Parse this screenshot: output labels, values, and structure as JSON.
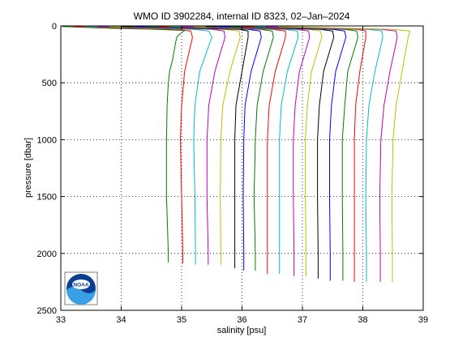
{
  "chart_data": {
    "type": "line",
    "title": "WMO ID 3902284, internal ID 8323, 02–Jan–2024",
    "xlabel": "salinity [psu]",
    "ylabel": "pressure [dbar]",
    "xlim": [
      33,
      39
    ],
    "ylim": [
      0,
      2500
    ],
    "y_reversed": true,
    "grid": "dotted",
    "xticks": [
      "33",
      "34",
      "35",
      "36",
      "37",
      "38",
      "39"
    ],
    "yticks": [
      "0",
      "500",
      "1000",
      "1500",
      "2000",
      "2500"
    ],
    "logo": {
      "text": "NOAA",
      "position": "bottom-left"
    },
    "series": [
      {
        "color": "#007f00",
        "points": [
          [
            33.02,
            5
          ],
          [
            33.9,
            22
          ],
          [
            34.45,
            28
          ],
          [
            35.05,
            40
          ],
          [
            35.0,
            60
          ],
          [
            34.95,
            80
          ],
          [
            34.92,
            100
          ],
          [
            34.9,
            150
          ],
          [
            34.85,
            300
          ],
          [
            34.8,
            400
          ],
          [
            34.78,
            500
          ],
          [
            34.76,
            700
          ],
          [
            34.75,
            1000
          ],
          [
            34.75,
            1500
          ],
          [
            34.78,
            2000
          ],
          [
            34.78,
            2080
          ]
        ]
      },
      {
        "color": "#ff0000",
        "points": [
          [
            33.2,
            5
          ],
          [
            34.3,
            22
          ],
          [
            34.9,
            30
          ],
          [
            35.15,
            45
          ],
          [
            35.18,
            100
          ],
          [
            35.05,
            400
          ],
          [
            35.0,
            700
          ],
          [
            34.98,
            1000
          ],
          [
            35.0,
            1500
          ],
          [
            35.02,
            2000
          ],
          [
            35.02,
            2090
          ]
        ]
      },
      {
        "color": "#00bfbf",
        "points": [
          [
            33.4,
            5
          ],
          [
            34.6,
            22
          ],
          [
            35.2,
            30
          ],
          [
            35.45,
            45
          ],
          [
            35.5,
            100
          ],
          [
            35.3,
            400
          ],
          [
            35.22,
            700
          ],
          [
            35.2,
            1000
          ],
          [
            35.22,
            1500
          ],
          [
            35.23,
            2000
          ],
          [
            35.23,
            2100
          ]
        ]
      },
      {
        "color": "#bf00bf",
        "points": [
          [
            33.6,
            5
          ],
          [
            34.9,
            22
          ],
          [
            35.5,
            30
          ],
          [
            35.7,
            45
          ],
          [
            35.72,
            100
          ],
          [
            35.55,
            400
          ],
          [
            35.45,
            700
          ],
          [
            35.42,
            1000
          ],
          [
            35.42,
            1500
          ],
          [
            35.44,
            2000
          ],
          [
            35.44,
            2100
          ]
        ]
      },
      {
        "color": "#bfbf00",
        "points": [
          [
            33.8,
            5
          ],
          [
            35.1,
            22
          ],
          [
            35.7,
            30
          ],
          [
            35.95,
            45
          ],
          [
            35.97,
            100
          ],
          [
            35.8,
            400
          ],
          [
            35.68,
            700
          ],
          [
            35.65,
            1000
          ],
          [
            35.64,
            1500
          ],
          [
            35.65,
            2000
          ],
          [
            35.65,
            2100
          ]
        ]
      },
      {
        "color": "#000000",
        "points": [
          [
            34.0,
            5
          ],
          [
            35.3,
            22
          ],
          [
            35.95,
            30
          ],
          [
            36.1,
            45
          ],
          [
            36.1,
            100
          ],
          [
            36.0,
            400
          ],
          [
            35.9,
            700
          ],
          [
            35.88,
            1000
          ],
          [
            35.88,
            1500
          ],
          [
            35.88,
            2000
          ],
          [
            35.88,
            2130
          ]
        ]
      },
      {
        "color": "#0000ff",
        "points": [
          [
            34.2,
            5
          ],
          [
            35.5,
            22
          ],
          [
            36.1,
            30
          ],
          [
            36.3,
            45
          ],
          [
            36.32,
            100
          ],
          [
            36.15,
            400
          ],
          [
            36.05,
            700
          ],
          [
            36.03,
            1000
          ],
          [
            36.02,
            1500
          ],
          [
            36.03,
            2000
          ],
          [
            36.03,
            2150
          ]
        ]
      },
      {
        "color": "#007f00",
        "points": [
          [
            34.4,
            5
          ],
          [
            35.7,
            22
          ],
          [
            36.3,
            30
          ],
          [
            36.5,
            45
          ],
          [
            36.52,
            100
          ],
          [
            36.35,
            400
          ],
          [
            36.25,
            700
          ],
          [
            36.22,
            1000
          ],
          [
            36.2,
            1500
          ],
          [
            36.22,
            2000
          ],
          [
            36.22,
            2150
          ]
        ]
      },
      {
        "color": "#ff0000",
        "points": [
          [
            34.6,
            5
          ],
          [
            35.9,
            22
          ],
          [
            36.5,
            30
          ],
          [
            36.72,
            45
          ],
          [
            36.72,
            100
          ],
          [
            36.55,
            400
          ],
          [
            36.45,
            700
          ],
          [
            36.42,
            1000
          ],
          [
            36.42,
            1500
          ],
          [
            36.42,
            2000
          ],
          [
            36.42,
            2180
          ]
        ]
      },
      {
        "color": "#00bfbf",
        "points": [
          [
            34.8,
            5
          ],
          [
            36.1,
            22
          ],
          [
            36.7,
            30
          ],
          [
            36.92,
            45
          ],
          [
            36.93,
            100
          ],
          [
            36.75,
            400
          ],
          [
            36.65,
            700
          ],
          [
            36.62,
            1000
          ],
          [
            36.62,
            1500
          ],
          [
            36.62,
            2000
          ],
          [
            36.62,
            2180
          ]
        ]
      },
      {
        "color": "#bf00bf",
        "points": [
          [
            35.0,
            5
          ],
          [
            36.3,
            22
          ],
          [
            36.9,
            30
          ],
          [
            37.1,
            45
          ],
          [
            37.12,
            100
          ],
          [
            36.95,
            400
          ],
          [
            36.88,
            700
          ],
          [
            36.85,
            1000
          ],
          [
            36.85,
            1500
          ],
          [
            36.86,
            2000
          ],
          [
            36.86,
            2200
          ]
        ]
      },
      {
        "color": "#bfbf00",
        "points": [
          [
            35.2,
            5
          ],
          [
            36.5,
            22
          ],
          [
            37.1,
            30
          ],
          [
            37.3,
            45
          ],
          [
            37.32,
            100
          ],
          [
            37.15,
            400
          ],
          [
            37.08,
            700
          ],
          [
            37.05,
            1000
          ],
          [
            37.05,
            1500
          ],
          [
            37.06,
            2000
          ],
          [
            37.06,
            2200
          ]
        ]
      },
      {
        "color": "#000000",
        "points": [
          [
            35.4,
            5
          ],
          [
            36.7,
            22
          ],
          [
            37.3,
            30
          ],
          [
            37.5,
            45
          ],
          [
            37.52,
            100
          ],
          [
            37.35,
            400
          ],
          [
            37.28,
            700
          ],
          [
            37.25,
            1000
          ],
          [
            37.25,
            1500
          ],
          [
            37.26,
            2000
          ],
          [
            37.26,
            2220
          ]
        ]
      },
      {
        "color": "#0000ff",
        "points": [
          [
            35.6,
            5
          ],
          [
            36.9,
            22
          ],
          [
            37.5,
            30
          ],
          [
            37.7,
            45
          ],
          [
            37.72,
            100
          ],
          [
            37.55,
            400
          ],
          [
            37.48,
            700
          ],
          [
            37.45,
            1000
          ],
          [
            37.45,
            1500
          ],
          [
            37.46,
            2000
          ],
          [
            37.46,
            2240
          ]
        ]
      },
      {
        "color": "#007f00",
        "points": [
          [
            35.8,
            5
          ],
          [
            37.1,
            22
          ],
          [
            37.7,
            30
          ],
          [
            37.9,
            45
          ],
          [
            37.92,
            100
          ],
          [
            37.75,
            400
          ],
          [
            37.7,
            700
          ],
          [
            37.66,
            1000
          ],
          [
            37.66,
            1500
          ],
          [
            37.67,
            2000
          ],
          [
            37.67,
            2240
          ]
        ]
      },
      {
        "color": "#ff0000",
        "points": [
          [
            36.0,
            5
          ],
          [
            37.3,
            22
          ],
          [
            37.9,
            30
          ],
          [
            38.05,
            45
          ],
          [
            38.05,
            100
          ],
          [
            37.95,
            400
          ],
          [
            37.88,
            700
          ],
          [
            37.86,
            1000
          ],
          [
            37.86,
            1500
          ],
          [
            37.86,
            2000
          ],
          [
            37.86,
            2250
          ]
        ]
      },
      {
        "color": "#00bfbf",
        "points": [
          [
            36.2,
            5
          ],
          [
            37.5,
            22
          ],
          [
            38.1,
            30
          ],
          [
            38.32,
            45
          ],
          [
            38.33,
            100
          ],
          [
            38.2,
            400
          ],
          [
            38.1,
            700
          ],
          [
            38.06,
            1000
          ],
          [
            38.05,
            1500
          ],
          [
            38.06,
            2000
          ],
          [
            38.06,
            2250
          ]
        ]
      },
      {
        "color": "#bf00bf",
        "points": [
          [
            36.4,
            5
          ],
          [
            37.7,
            22
          ],
          [
            38.3,
            30
          ],
          [
            38.55,
            45
          ],
          [
            38.57,
            100
          ],
          [
            38.45,
            400
          ],
          [
            38.35,
            700
          ],
          [
            38.3,
            1000
          ],
          [
            38.28,
            1500
          ],
          [
            38.29,
            2000
          ],
          [
            38.29,
            2250
          ]
        ]
      },
      {
        "color": "#bfbf00",
        "points": [
          [
            36.6,
            5
          ],
          [
            37.9,
            22
          ],
          [
            38.5,
            30
          ],
          [
            38.78,
            45
          ],
          [
            38.75,
            100
          ],
          [
            38.65,
            400
          ],
          [
            38.55,
            700
          ],
          [
            38.5,
            1000
          ],
          [
            38.48,
            1500
          ],
          [
            38.49,
            2000
          ],
          [
            38.49,
            2250
          ]
        ]
      }
    ]
  }
}
